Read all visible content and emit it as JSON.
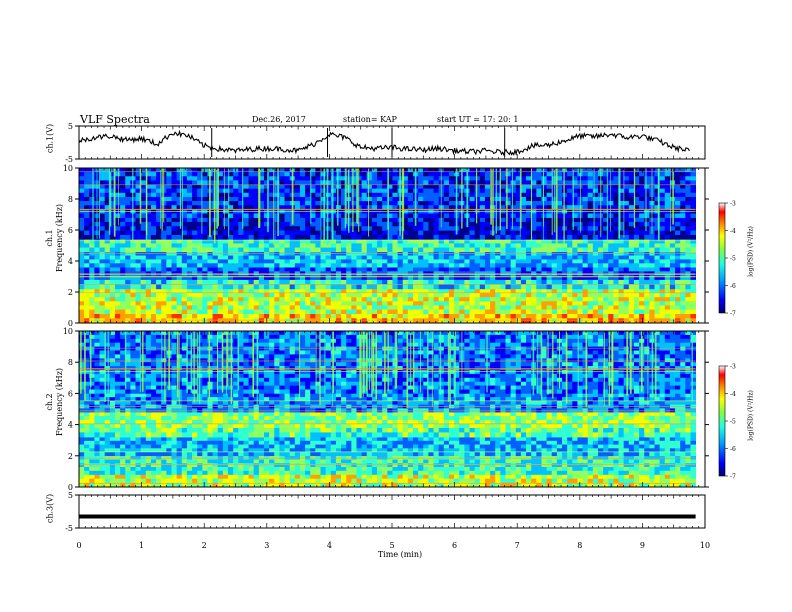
{
  "header": {
    "title": "VLF Spectra",
    "date": "Dec.26, 2017",
    "station": "station= KAP",
    "start": "start  UT =    17: 20: 1"
  },
  "chart_data": [
    {
      "type": "line",
      "panel": "ch1-waveform",
      "ylabel": "ch.1(V)",
      "ylim": [
        -5,
        5
      ],
      "yticks": [
        "5",
        "-5"
      ],
      "x": [
        0,
        0.25,
        0.5,
        0.75,
        1,
        1.25,
        1.5,
        1.75,
        2,
        2.25,
        2.5,
        2.75,
        3,
        3.25,
        3.5,
        3.75,
        4,
        4.25,
        4.5,
        4.75,
        5,
        5.25,
        5.5,
        5.75,
        6,
        6.25,
        6.5,
        6.75,
        7,
        7.25,
        7.5,
        7.75,
        8,
        8.25,
        8.5,
        8.75,
        9,
        9.25,
        9.5,
        9.75
      ],
      "values": [
        0.5,
        1.5,
        2,
        0.8,
        1.2,
        -0.5,
        3,
        2,
        -1,
        -2,
        -2.5,
        -2,
        -1.8,
        -2,
        -2.5,
        -0.5,
        2.5,
        1.5,
        -1.5,
        -1.8,
        -1.5,
        -2,
        -2.2,
        -1.8,
        -2.5,
        -2.8,
        -2.5,
        -3,
        -2.8,
        -1,
        -0.8,
        0.5,
        2,
        1.8,
        2.5,
        1.5,
        2,
        0.5,
        -1.5,
        -2.5
      ]
    },
    {
      "type": "heatmap",
      "panel": "ch1-spectrogram",
      "ylabel": "ch.1\nFrequency (kHz)",
      "ylim": [
        0,
        10
      ],
      "yticks": [
        "0",
        "2",
        "4",
        "6",
        "8",
        "10"
      ],
      "colorbar_label": "log(PSD) (V²/Hz)",
      "colorbar_range": [
        -7,
        -3
      ],
      "colorbar_ticks": [
        "-3",
        "-4",
        "-5",
        "-6",
        "-7"
      ],
      "freq_bands_khz": [
        {
          "from": 0,
          "to": 0.6,
          "level": -4.2
        },
        {
          "from": 0.6,
          "to": 2.2,
          "level": -4.6
        },
        {
          "from": 2.2,
          "to": 2.8,
          "level": -5.3
        },
        {
          "from": 2.8,
          "to": 3.6,
          "level": -6.0
        },
        {
          "from": 3.6,
          "to": 4.6,
          "level": -5.6
        },
        {
          "from": 4.6,
          "to": 5.4,
          "level": -5.2
        },
        {
          "from": 5.4,
          "to": 6.8,
          "level": -6.5
        },
        {
          "from": 6.8,
          "to": 10,
          "level": -6.2
        }
      ]
    },
    {
      "type": "heatmap",
      "panel": "ch2-spectrogram",
      "ylabel": "ch.2\nFrequency (kHz)",
      "ylim": [
        0,
        10
      ],
      "yticks": [
        "0",
        "2",
        "4",
        "6",
        "8",
        "10"
      ],
      "colorbar_label": "log(PSD) (V²/Hz)",
      "colorbar_range": [
        -7,
        -3
      ],
      "colorbar_ticks": [
        "-3",
        "-4",
        "-5",
        "-6",
        "-7"
      ],
      "freq_bands_khz": [
        {
          "from": 0,
          "to": 0.8,
          "level": -4.6
        },
        {
          "from": 0.8,
          "to": 2.0,
          "level": -5.2
        },
        {
          "from": 2.0,
          "to": 3.2,
          "level": -5.6
        },
        {
          "from": 3.2,
          "to": 3.8,
          "level": -5.0
        },
        {
          "from": 3.8,
          "to": 4.8,
          "level": -4.8
        },
        {
          "from": 4.8,
          "to": 6.0,
          "level": -5.8
        },
        {
          "from": 6.0,
          "to": 10,
          "level": -5.9
        }
      ]
    },
    {
      "type": "line",
      "panel": "ch3-waveform",
      "ylabel": "ch.3(V)",
      "ylim": [
        -5,
        5
      ],
      "yticks": [
        "5",
        "-5"
      ],
      "x": [
        0,
        9.85
      ],
      "values": [
        -1.5,
        -1.5
      ]
    }
  ],
  "xaxis": {
    "label": "Time (min)",
    "ticks": [
      "0",
      "1",
      "2",
      "3",
      "4",
      "5",
      "6",
      "7",
      "8",
      "9",
      "10"
    ],
    "range": [
      0,
      10
    ],
    "data_end_min": 9.85
  },
  "colors": {
    "colormap": [
      "#00008f",
      "#0000ff",
      "#0060ff",
      "#00c0ff",
      "#30ffd0",
      "#90ff60",
      "#f0ff00",
      "#ffa000",
      "#ff3000",
      "#c00000"
    ]
  }
}
